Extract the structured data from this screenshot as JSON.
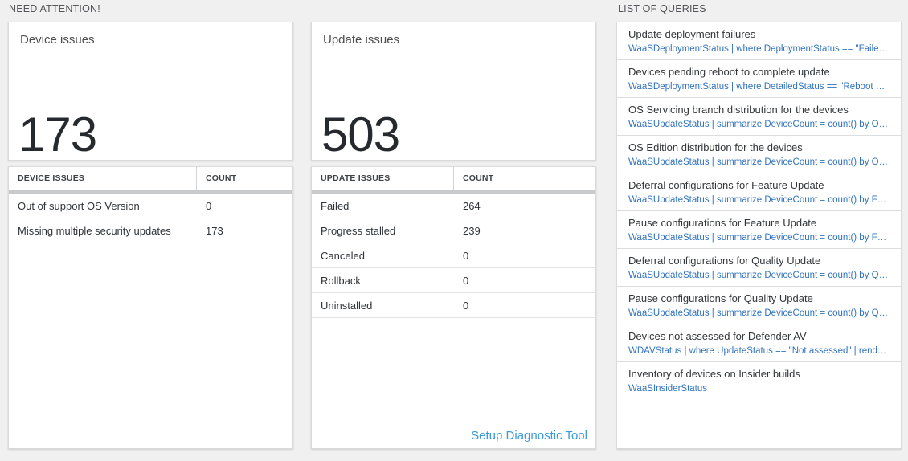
{
  "sections": {
    "need_attention_label": "NEED ATTENTION!",
    "list_of_queries_label": "LIST OF QUERIES"
  },
  "device_card": {
    "title": "Device issues",
    "big_number": "173",
    "table": {
      "headers": [
        "DEVICE ISSUES",
        "COUNT"
      ],
      "rows": [
        {
          "label": "Out of support OS Version",
          "count": "0"
        },
        {
          "label": "Missing multiple security updates",
          "count": "173"
        }
      ]
    }
  },
  "update_card": {
    "title": "Update issues",
    "big_number": "503",
    "table": {
      "headers": [
        "UPDATE ISSUES",
        "COUNT"
      ],
      "rows": [
        {
          "label": "Failed",
          "count": "264"
        },
        {
          "label": "Progress stalled",
          "count": "239"
        },
        {
          "label": "Canceled",
          "count": "0"
        },
        {
          "label": "Rollback",
          "count": "0"
        },
        {
          "label": "Uninstalled",
          "count": "0"
        }
      ]
    },
    "setup_link_label": "Setup Diagnostic Tool"
  },
  "queries": {
    "items": [
      {
        "title": "Update deployment failures",
        "query": "WaaSDeploymentStatus | where DeploymentStatus == \"Failed\" |..."
      },
      {
        "title": "Devices pending reboot to complete update",
        "query": "WaaSDeploymentStatus | where DetailedStatus == \"Reboot pend..."
      },
      {
        "title": "OS Servicing branch distribution for the devices",
        "query": "WaaSUpdateStatus | summarize DeviceCount = count() by OSSer..."
      },
      {
        "title": "OS Edition distribution for the devices",
        "query": "WaaSUpdateStatus | summarize DeviceCount = count() by OSEdit..."
      },
      {
        "title": "Deferral configurations for Feature Update",
        "query": "WaaSUpdateStatus | summarize DeviceCount = count() by Featur..."
      },
      {
        "title": "Pause configurations for Feature Update",
        "query": "WaaSUpdateStatus | summarize DeviceCount = count() by Featur..."
      },
      {
        "title": "Deferral configurations for Quality Update",
        "query": "WaaSUpdateStatus | summarize DeviceCount = count() by Qualit..."
      },
      {
        "title": "Pause configurations for Quality Update",
        "query": "WaaSUpdateStatus | summarize DeviceCount = count() by Qualit..."
      },
      {
        "title": "Devices not assessed for Defender AV",
        "query": "WDAVStatus | where UpdateStatus == \"Not assessed\" | render ta..."
      },
      {
        "title": "Inventory of devices on Insider builds",
        "query": "WaaSInsiderStatus"
      }
    ]
  },
  "colors": {
    "page_background": "#f0f0f1",
    "query_link_blue": "#3173bd",
    "setup_link_blue": "#3b9ad9",
    "header_bar_gray": "#c9cacb",
    "big_number_color": "#26292d"
  }
}
